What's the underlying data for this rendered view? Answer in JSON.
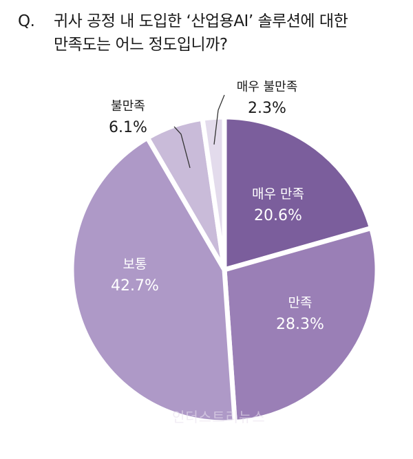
{
  "title": {
    "prefix": "Q.",
    "line1": "귀사 공정 내 도입한 ‘산업용AI’ 솔루션에 대한",
    "line2": "만족도는 어느 정도입니까?"
  },
  "chart_data": {
    "type": "pie",
    "start_angle_deg": 0,
    "direction": "clockwise",
    "slices": [
      {
        "label": "매우 만족",
        "value": 20.6,
        "value_label": "20.6%",
        "color": "#7b5e9c",
        "text_color": "#ffffff"
      },
      {
        "label": "만족",
        "value": 28.3,
        "value_label": "28.3%",
        "color": "#9a7fb6",
        "text_color": "#ffffff"
      },
      {
        "label": "보통",
        "value": 42.7,
        "value_label": "42.7%",
        "color": "#ae99c7",
        "text_color": "#ffffff"
      },
      {
        "label": "불만족",
        "value": 6.1,
        "value_label": "6.1%",
        "color": "#c9bbd9",
        "text_color": "#1a1a1a"
      },
      {
        "label": "매우 불만족",
        "value": 2.3,
        "value_label": "2.3%",
        "color": "#e3dbec",
        "text_color": "#1a1a1a"
      }
    ]
  },
  "watermark": "인더스트리뉴스"
}
